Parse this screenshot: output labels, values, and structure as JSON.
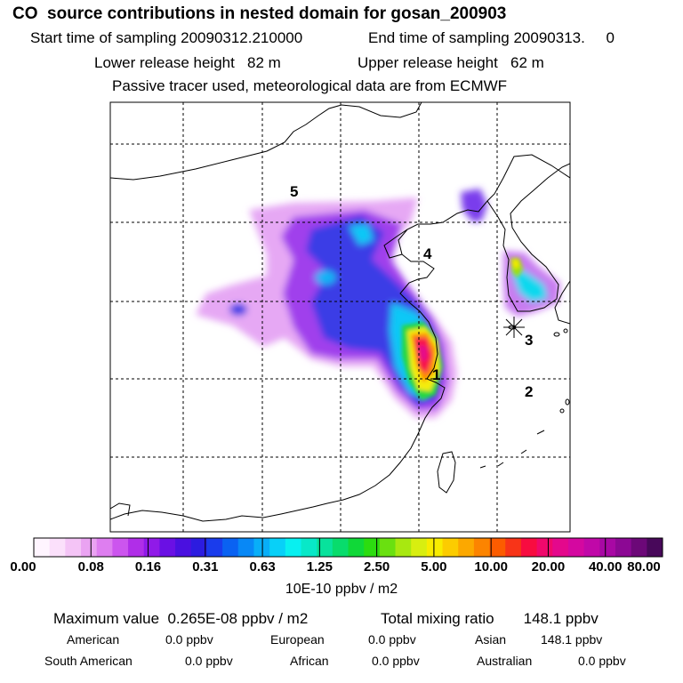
{
  "title": "CO  source contributions in nested domain for gosan_200903",
  "start_label": "Start time of sampling 20090312.210000",
  "end_label": "End time of sampling 20090313.     0",
  "lower_label": "Lower release height   82 m",
  "upper_label": "Upper release height   62 m",
  "tracer_label": "Passive tracer used, meteorological data are from ECMWF",
  "map_labels": [
    "1",
    "2",
    "3",
    "4",
    "5"
  ],
  "colorbar": {
    "tick_labels": [
      "0.00",
      "0.08",
      "0.16",
      "0.31",
      "0.63",
      "1.25",
      "2.50",
      "5.00",
      "10.00",
      "20.00",
      "40.00",
      "80.00"
    ],
    "colors": [
      "#fff5ff",
      "#fbe0fb",
      "#f4c4f6",
      "#eaa3f2",
      "#de7ef0",
      "#cc55ee",
      "#b02ee8",
      "#901ae8",
      "#6a10e4",
      "#4a10e0",
      "#2c1ce0",
      "#1a3cec",
      "#0a62f2",
      "#0888f6",
      "#08aef8",
      "#08d0f8",
      "#08f0f0",
      "#08e8c8",
      "#08e29c",
      "#08dc6c",
      "#10d838",
      "#2cdc10",
      "#6ae010",
      "#a8e810",
      "#d8ee10",
      "#f8ec00",
      "#fccc00",
      "#fca800",
      "#fc8400",
      "#fc5c00",
      "#f83418",
      "#f80c40",
      "#f0086c",
      "#e4088c",
      "#d408a0",
      "#c008a8",
      "#a808a4",
      "#8c0894",
      "#6c0878",
      "#48085a"
    ]
  },
  "unit_label": "10E-10 ppbv / m2",
  "max_label": "Maximum value  0.265E-08 ppbv / m2",
  "total_label": "Total mixing ratio       148.1 ppbv",
  "region_rows": [
    [
      {
        "name": "American",
        "value": "0.0 ppbv"
      },
      {
        "name": "European",
        "value": "0.0 ppbv"
      },
      {
        "name": "Asian",
        "value": "148.1 ppbv"
      }
    ],
    [
      {
        "name": "South American",
        "value": "0.0 ppbv"
      },
      {
        "name": "African",
        "value": "0.0 ppbv"
      },
      {
        "name": "Australian",
        "value": "0.0 ppbv"
      }
    ]
  ]
}
